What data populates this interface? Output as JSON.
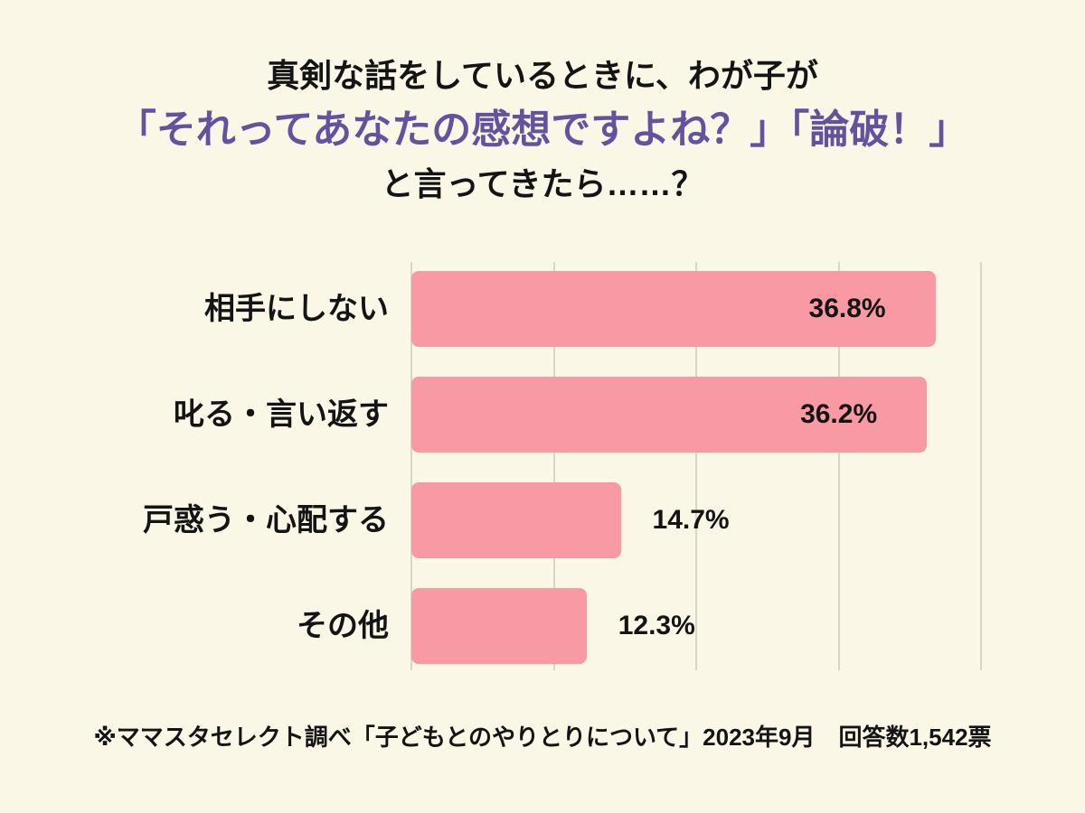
{
  "title": {
    "line1": "真剣な話をしているときに、わが子が",
    "line2": "「それってあなたの感想ですよね？」「論破！」",
    "line3": "と言ってきたら……？"
  },
  "chart_data": {
    "type": "bar",
    "orientation": "horizontal",
    "title": "真剣な話をしているときに、わが子が「それってあなたの感想ですよね？」「論破！」と言ってきたら……？",
    "categories": [
      "相手にしない",
      "叱る・言い返す",
      "戸惑う・心配する",
      "その他"
    ],
    "values": [
      36.8,
      36.2,
      14.7,
      12.3
    ],
    "value_labels": [
      "36.8%",
      "36.2%",
      "14.7%",
      "12.3%"
    ],
    "xlabel": "",
    "ylabel": "",
    "xlim": [
      0,
      40
    ],
    "gridlines": [
      0,
      10,
      20,
      30,
      40
    ],
    "grid": true,
    "legend": false
  },
  "footer": {
    "note": "※ママスタセレクト調べ「子どもとのやりとりについて」2023年9月　回答数1,542票"
  },
  "colors": {
    "background": "#FBF7E7",
    "title_accent": "#66519F",
    "text": "#141414",
    "bar": "#F899A4",
    "gridline": "#D9D5C8"
  }
}
